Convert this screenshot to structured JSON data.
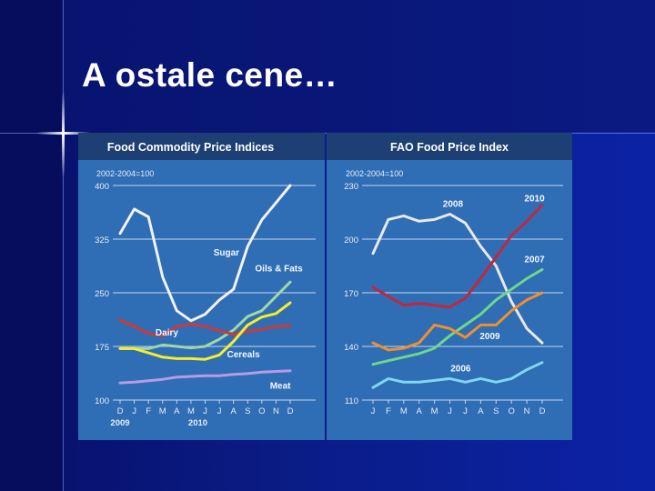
{
  "slide": {
    "title": "A ostale cene…"
  },
  "chart_data": [
    {
      "type": "line",
      "title": "Food Commodity Price Indices",
      "subtitle": "2002-2004=100",
      "x": [
        "D",
        "J",
        "F",
        "M",
        "A",
        "M",
        "J",
        "J",
        "A",
        "S",
        "O",
        "N",
        "D"
      ],
      "year_labels": [
        "2009",
        "2010"
      ],
      "ylim": [
        100,
        400
      ],
      "yticks": [
        100,
        175,
        250,
        325,
        400
      ],
      "grid": true,
      "series": [
        {
          "name": "Sugar",
          "color": "#f2f2f2",
          "values": [
            333,
            367,
            356,
            272,
            225,
            211,
            220,
            240,
            255,
            315,
            352,
            376,
            400
          ]
        },
        {
          "name": "Oils & Fats",
          "color": "#9fd8a8",
          "values": [
            172,
            172,
            172,
            177,
            175,
            173,
            175,
            185,
            198,
            217,
            225,
            245,
            265
          ]
        },
        {
          "name": "Dairy",
          "color": "#c93b3b",
          "values": [
            212,
            203,
            193,
            190,
            203,
            206,
            203,
            197,
            192,
            196,
            199,
            203,
            204
          ]
        },
        {
          "name": "Cereals",
          "color": "#f7ee2a",
          "values": [
            172,
            172,
            166,
            160,
            158,
            158,
            157,
            163,
            182,
            205,
            216,
            221,
            236
          ]
        },
        {
          "name": "Meat",
          "color": "#b89ae6",
          "values": [
            124,
            125,
            127,
            129,
            132,
            133,
            134,
            134,
            136,
            137,
            139,
            140,
            141
          ]
        }
      ]
    },
    {
      "type": "line",
      "title": "FAO Food Price Index",
      "subtitle": "2002-2004=100",
      "x": [
        "J",
        "F",
        "M",
        "A",
        "M",
        "J",
        "J",
        "A",
        "S",
        "O",
        "N",
        "D"
      ],
      "ylim": [
        110,
        230
      ],
      "yticks": [
        110,
        140,
        170,
        200,
        230
      ],
      "grid": true,
      "series": [
        {
          "name": "2008",
          "color": "#e8e8e8",
          "values": [
            192,
            211,
            213,
            210,
            211,
            214,
            209,
            196,
            185,
            165,
            150,
            142
          ]
        },
        {
          "name": "2010",
          "color": "#c0283f",
          "values": [
            173,
            168,
            163,
            164,
            163,
            162,
            167,
            178,
            190,
            202,
            210,
            219
          ]
        },
        {
          "name": "2007",
          "color": "#6fd68c",
          "values": [
            130,
            132,
            134,
            136,
            139,
            146,
            152,
            158,
            166,
            172,
            178,
            183
          ]
        },
        {
          "name": "2009",
          "color": "#f0902c",
          "values": [
            142,
            138,
            139,
            142,
            152,
            150,
            145,
            152,
            152,
            160,
            166,
            170
          ]
        },
        {
          "name": "2006",
          "color": "#7fd6f2",
          "values": [
            117,
            122,
            120,
            120,
            121,
            122,
            120,
            122,
            120,
            122,
            127,
            131
          ]
        }
      ]
    }
  ]
}
